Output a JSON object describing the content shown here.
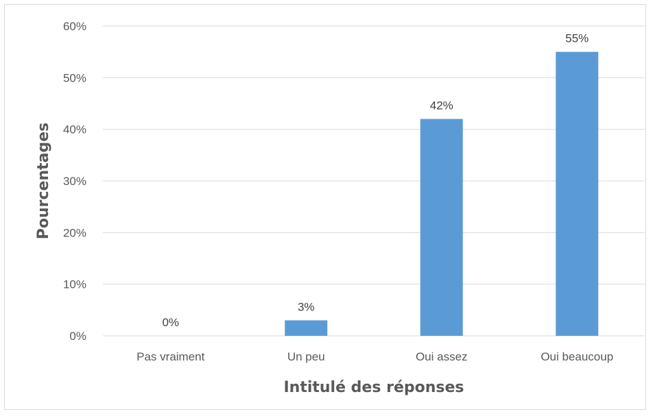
{
  "chart_data": {
    "type": "bar",
    "categories": [
      "Pas vraiment",
      "Un peu",
      "Oui assez",
      "Oui beaucoup"
    ],
    "values": [
      0,
      3,
      42,
      55
    ],
    "data_labels": [
      "0%",
      "3%",
      "42%",
      "55%"
    ],
    "title": "",
    "xlabel": "Intitulé des réponses",
    "ylabel": "Pourcentages",
    "ylim": [
      0,
      60
    ],
    "y_ticks": [
      0,
      10,
      20,
      30,
      40,
      50,
      60
    ],
    "y_tick_labels": [
      "0%",
      "10%",
      "20%",
      "30%",
      "40%",
      "50%",
      "60%"
    ],
    "grid": true,
    "legend": "none",
    "colors": {
      "bar": "#5b9bd5",
      "grid": "#d9d9d9",
      "axis_text": "#595959",
      "label_text": "#404040"
    }
  }
}
